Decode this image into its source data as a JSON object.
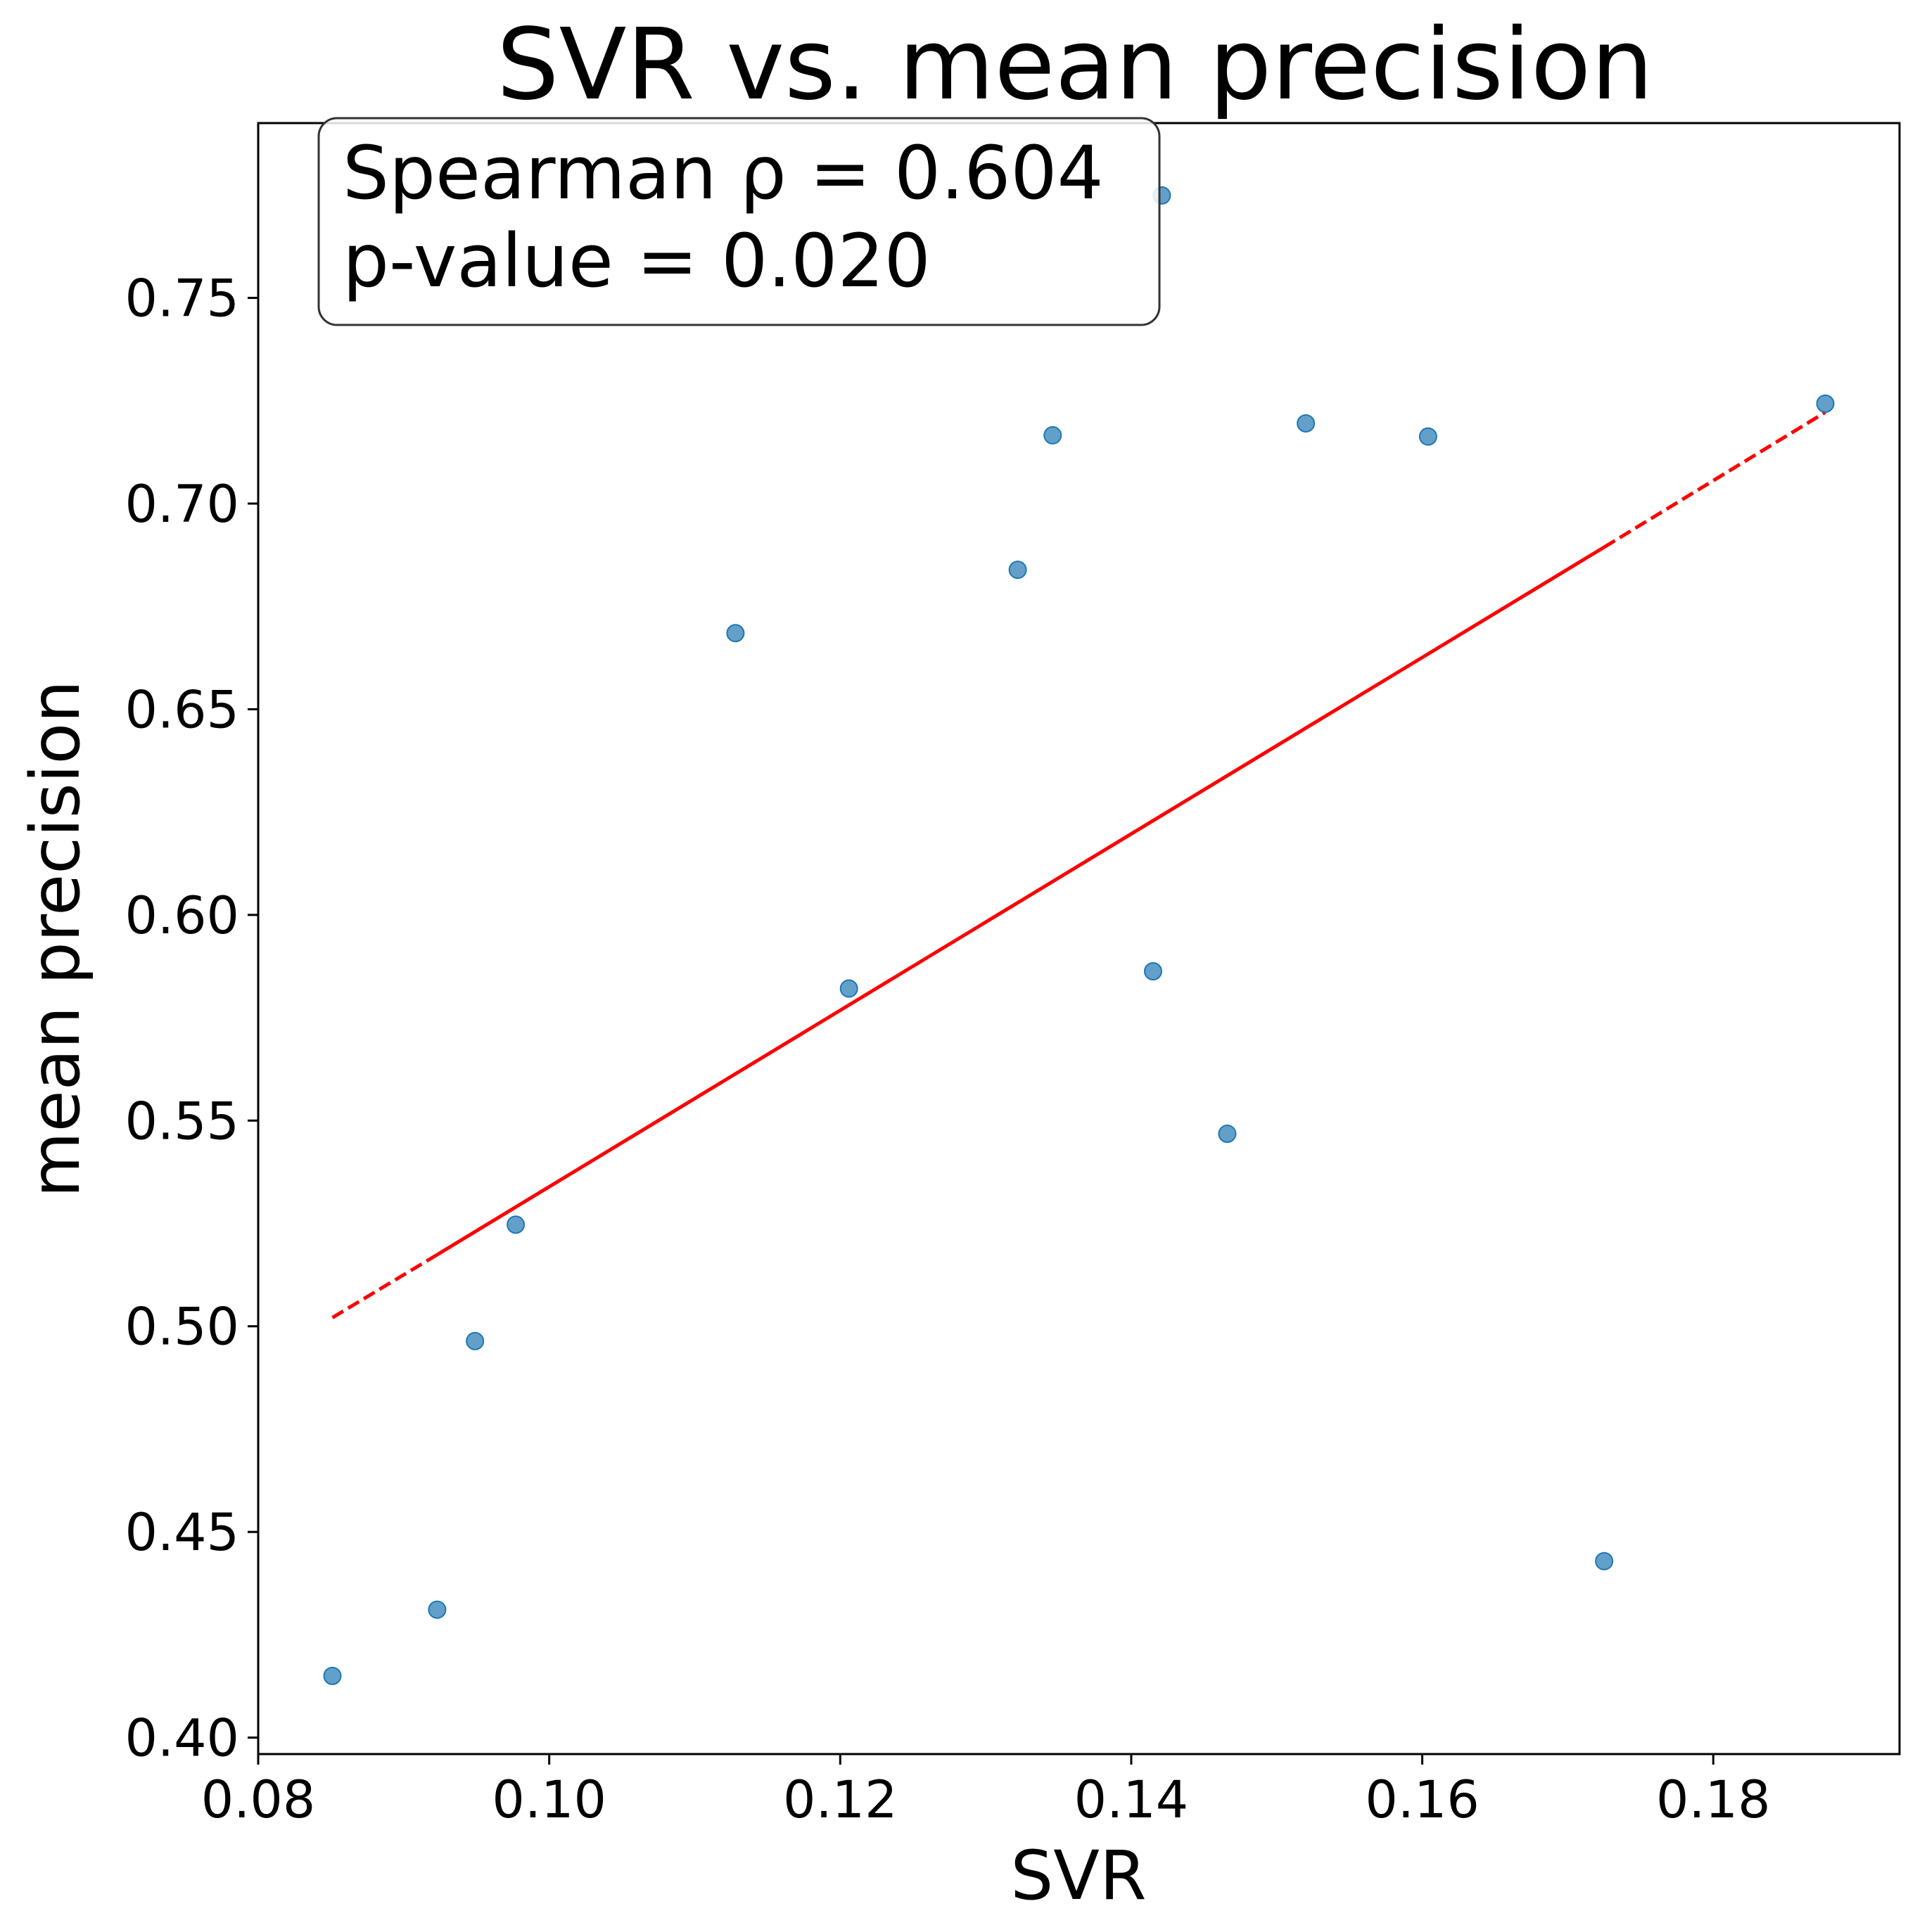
{
  "chart_data": {
    "type": "scatter",
    "title": "SVR vs. mean precision",
    "xlabel": "SVR",
    "ylabel": "mean precision",
    "xlim": [
      0.08,
      0.1928
    ],
    "ylim": [
      0.396,
      0.7925
    ],
    "xticks": [
      {
        "value": 0.08,
        "label": "0.08"
      },
      {
        "value": 0.1,
        "label": "0.10"
      },
      {
        "value": 0.12,
        "label": "0.12"
      },
      {
        "value": 0.14,
        "label": "0.14"
      },
      {
        "value": 0.16,
        "label": "0.16"
      },
      {
        "value": 0.18,
        "label": "0.18"
      }
    ],
    "yticks": [
      {
        "value": 0.4,
        "label": "0.40"
      },
      {
        "value": 0.45,
        "label": "0.45"
      },
      {
        "value": 0.5,
        "label": "0.50"
      },
      {
        "value": 0.55,
        "label": "0.55"
      },
      {
        "value": 0.6,
        "label": "0.60"
      },
      {
        "value": 0.65,
        "label": "0.65"
      },
      {
        "value": 0.7,
        "label": "0.70"
      },
      {
        "value": 0.75,
        "label": "0.75"
      }
    ],
    "points": [
      {
        "x": 0.0851,
        "y": 0.415
      },
      {
        "x": 0.0923,
        "y": 0.4311
      },
      {
        "x": 0.0949,
        "y": 0.4964
      },
      {
        "x": 0.0977,
        "y": 0.5247
      },
      {
        "x": 0.1128,
        "y": 0.6685
      },
      {
        "x": 0.1206,
        "y": 0.5821
      },
      {
        "x": 0.1322,
        "y": 0.6839
      },
      {
        "x": 0.1346,
        "y": 0.7166
      },
      {
        "x": 0.1415,
        "y": 0.5863
      },
      {
        "x": 0.1421,
        "y": 0.7749
      },
      {
        "x": 0.1466,
        "y": 0.5468
      },
      {
        "x": 0.152,
        "y": 0.7195
      },
      {
        "x": 0.1604,
        "y": 0.7163
      },
      {
        "x": 0.1725,
        "y": 0.4429
      },
      {
        "x": 0.1877,
        "y": 0.7243
      }
    ],
    "point_color": "#1f77b4",
    "trend_line": {
      "color": "#ff0000",
      "solid": {
        "x0": 0.0923,
        "y0": 0.5174,
        "x1": 0.1725,
        "y1": 0.6894
      },
      "dashed_segments": [
        {
          "x0": 0.0851,
          "y0": 0.5021,
          "x1": 0.0923,
          "y1": 0.5174
        },
        {
          "x0": 0.1725,
          "y0": 0.6894,
          "x1": 0.1877,
          "y1": 0.7222
        }
      ]
    },
    "stats_box": {
      "line1": "Spearman ρ = 0.604",
      "line2": "p-value = 0.020"
    },
    "grid": false,
    "legend": "none"
  }
}
